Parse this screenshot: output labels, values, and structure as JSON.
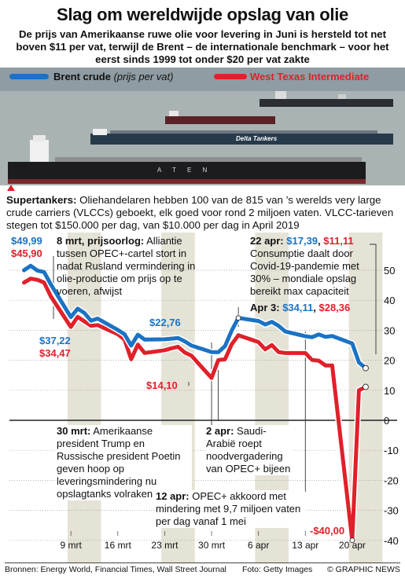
{
  "title": "Slag om wereldwijde opslag van olie",
  "subtitle": "De prijs van Amerikaanse ruwe olie voor levering in Juni is hersteld tot net boven $11 per vat, terwijl de Brent – de internationale benchmark – voor het eerst sinds 1999 tot onder $20 per vat zakte",
  "legend": {
    "brent_label": "Brent crude",
    "brent_note": "(prijs per vat)",
    "wti_label": "West Texas Intermediate"
  },
  "photo_text": {
    "ship_name": "Delta Tankers",
    "hull_text": "A T E N"
  },
  "supertankers": {
    "lead": "Supertankers:",
    "text": "Oliehandelaren hebben 100 van de 815 van ’s werelds very large crude carriers (VLCCs) geboekt, elk goed voor rond 2 miljoen vaten. VLCC-tarieven stegen tot $150.000 per dag, van $10.000 per dag in April 2019"
  },
  "values": {
    "brent_start": "$49,99",
    "wti_start": "$45,90",
    "brent_9mrt": "$37,22",
    "wti_9mrt": "$34,47",
    "brent_mid": "$22,76",
    "wti_low": "$14,10",
    "wti_min": "-$40,00"
  },
  "annotations": {
    "a8mrt_head": "8 mrt, prijsoorlog:",
    "a8mrt_text": "Alliantie tussen OPEC+-cartel stort in nadat Rusland vermindering in olie-productie om prijs op te voeren, afwijst",
    "a22apr_head": "22 apr:",
    "a22apr_brent": "$17,39",
    "a22apr_sep": ",",
    "a22apr_wti": "$11,11",
    "a22apr_text": "Consumptie daalt door Covid-19-pandemie met 30% – mondiale opslag bereikt max capaciteit",
    "a3apr_head": "Apr 3:",
    "a3apr_brent": "$34,11",
    "a3apr_sep": ",",
    "a3apr_wti": "$28,36",
    "a30mrt_head": "30 mrt:",
    "a30mrt_text": "Amerikaanse president Trump en Russische president Poetin geven hoop op leveringsmindering nu opslagtanks volraken",
    "a2apr_head": "2 apr:",
    "a2apr_text": "Saudi-Arabië roept noodvergadering van OPEC+ bijeen",
    "a12apr_head": "12 apr:",
    "a12apr_text": "OPEC+ akkoord met mindering met 9,7 miljoen vaten per dag vanaf 1 mei"
  },
  "footer": {
    "sources": "Bronnen: Energy World, Financial Times, Wall Street Journal",
    "photo": "Foto: Getty Images",
    "copyright": "© GRAPHIC NEWS"
  },
  "colors": {
    "brent": "#1a73c4",
    "wti": "#e0202a",
    "band": "#e5e2d6"
  },
  "chart_data": {
    "type": "line",
    "ylim": [
      -45,
      55
    ],
    "yticks": [
      50,
      40,
      30,
      20,
      10,
      0,
      -10,
      -20,
      -30,
      -40
    ],
    "ytick_labels": [
      "50",
      "40",
      "30",
      "20",
      "10",
      "0",
      "-10",
      "-20",
      "-30",
      "-40"
    ],
    "xticks": [
      9,
      16,
      23,
      30,
      37,
      44,
      51
    ],
    "xtick_labels": [
      "9 mrt",
      "16 mrt",
      "23 mrt",
      "30 mrt",
      "6 apr",
      "13 apr",
      "20 apr"
    ],
    "x_unit": "days since 1 March 2020",
    "series": [
      {
        "name": "Brent crude",
        "color": "#1a73c4",
        "x": [
          2,
          3,
          4,
          5,
          6,
          9,
          10,
          11,
          12,
          13,
          16,
          17,
          18,
          19,
          20,
          23,
          24,
          25,
          26,
          27,
          30,
          31,
          32,
          33,
          34,
          37,
          38,
          39,
          40,
          41,
          44,
          45,
          46,
          47,
          48,
          51,
          52,
          53
        ],
        "values": [
          49.99,
          51.5,
          49.9,
          49.4,
          45.3,
          34.4,
          37.2,
          35.8,
          33.2,
          33.9,
          30.1,
          28.7,
          24.9,
          28.5,
          26.9,
          27.0,
          27.2,
          27.4,
          26.3,
          24.9,
          22.76,
          22.7,
          24.7,
          29.9,
          34.11,
          33.1,
          31.9,
          32.8,
          31.5,
          29.6,
          28.0,
          27.7,
          28.6,
          27.8,
          28.1,
          25.6,
          19.3,
          17.39
        ]
      },
      {
        "name": "West Texas Intermediate",
        "color": "#e0202a",
        "x": [
          2,
          3,
          4,
          5,
          6,
          9,
          10,
          11,
          12,
          13,
          16,
          17,
          18,
          19,
          20,
          23,
          24,
          25,
          26,
          27,
          30,
          31,
          32,
          33,
          34,
          37,
          38,
          39,
          40,
          41,
          44,
          45,
          46,
          47,
          48,
          51,
          52,
          53
        ],
        "values": [
          45.9,
          47.2,
          46.8,
          45.9,
          41.3,
          31.1,
          34.47,
          32.98,
          31.5,
          31.73,
          28.7,
          26.95,
          20.37,
          25.22,
          22.43,
          23.36,
          24.01,
          24.49,
          22.6,
          21.51,
          14.1,
          20.09,
          20.31,
          25.32,
          28.36,
          26.08,
          23.63,
          25.09,
          22.76,
          22.41,
          22.41,
          20.11,
          19.87,
          18.27,
          18.27,
          -40.0,
          10.01,
          11.11
        ]
      }
    ]
  }
}
